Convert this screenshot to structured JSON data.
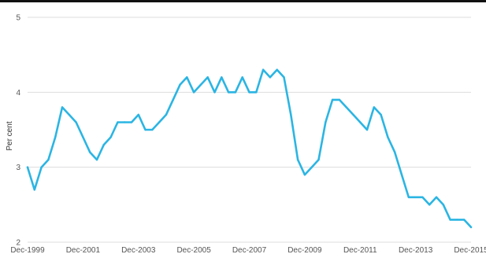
{
  "chart_data": {
    "type": "line",
    "title": "",
    "xlabel": "",
    "ylabel": "Per cent",
    "ylim": [
      2,
      5
    ],
    "yticks": [
      2,
      3,
      4,
      5
    ],
    "xlim": [
      "1999-12",
      "2015-12"
    ],
    "xticks": [
      "1999-12",
      "2001-12",
      "2003-12",
      "2005-12",
      "2007-12",
      "2009-12",
      "2011-12",
      "2013-12",
      "2015-12"
    ],
    "xtick_labels": [
      "Dec-1999",
      "Dec-2001",
      "Dec-2003",
      "Dec-2005",
      "Dec-2007",
      "Dec-2009",
      "Dec-2011",
      "Dec-2013",
      "Dec-2015"
    ],
    "grid": "horizontal",
    "line_color": "#2bb5e3",
    "series": [
      {
        "x": [
          "1999-12",
          "2000-03",
          "2000-06",
          "2000-09",
          "2000-12",
          "2001-03",
          "2001-06",
          "2001-09",
          "2001-12",
          "2002-03",
          "2002-06",
          "2002-09",
          "2002-12",
          "2003-03",
          "2003-06",
          "2003-09",
          "2003-12",
          "2004-03",
          "2004-06",
          "2004-09",
          "2004-12",
          "2005-03",
          "2005-06",
          "2005-09",
          "2005-12",
          "2006-03",
          "2006-06",
          "2006-09",
          "2006-12",
          "2007-03",
          "2007-06",
          "2007-09",
          "2007-12",
          "2008-03",
          "2008-06",
          "2008-09",
          "2008-12",
          "2009-03",
          "2009-06",
          "2009-09",
          "2009-12",
          "2010-03",
          "2010-06",
          "2010-09",
          "2010-12",
          "2011-03",
          "2011-06",
          "2011-09",
          "2011-12",
          "2012-03",
          "2012-06",
          "2012-09",
          "2012-12",
          "2013-03",
          "2013-06",
          "2013-09",
          "2013-12",
          "2014-03",
          "2014-06",
          "2014-09",
          "2014-12",
          "2015-03",
          "2015-06",
          "2015-09",
          "2015-12"
        ],
        "y": [
          3.0,
          2.7,
          3.0,
          3.1,
          3.4,
          3.8,
          3.7,
          3.6,
          3.4,
          3.2,
          3.1,
          3.3,
          3.4,
          3.6,
          3.6,
          3.6,
          3.7,
          3.5,
          3.5,
          3.6,
          3.7,
          3.9,
          4.1,
          4.2,
          4.0,
          4.1,
          4.2,
          4.0,
          4.2,
          4.0,
          4.0,
          4.2,
          4.0,
          4.0,
          4.3,
          4.2,
          4.3,
          4.2,
          3.7,
          3.1,
          2.9,
          3.0,
          3.1,
          3.6,
          3.9,
          3.9,
          3.8,
          3.7,
          3.6,
          3.5,
          3.8,
          3.7,
          3.4,
          3.2,
          2.9,
          2.6,
          2.6,
          2.6,
          2.5,
          2.6,
          2.5,
          2.3,
          2.3,
          2.3,
          2.2
        ]
      }
    ]
  }
}
